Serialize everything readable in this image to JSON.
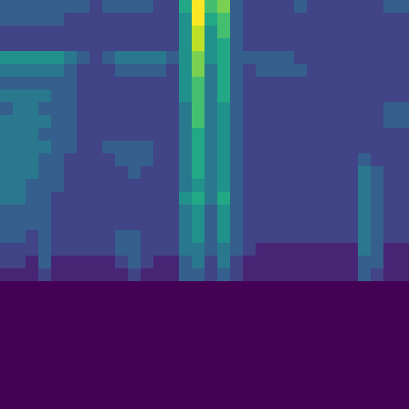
{
  "chart_data": {
    "type": "heatmap",
    "tick_labels": false,
    "zlim": [
      0,
      10
    ],
    "cells": [
      [
        3,
        3,
        3,
        3,
        3,
        3,
        3,
        2,
        3,
        3,
        3,
        3,
        2,
        2,
        6,
        10,
        7,
        8,
        3,
        2,
        2,
        2,
        2,
        3,
        2,
        2,
        2,
        2,
        2,
        2,
        3,
        3
      ],
      [
        3,
        3,
        3,
        3,
        3,
        2,
        2,
        2,
        2,
        2,
        2,
        2,
        2,
        2,
        5,
        10,
        6,
        7,
        3,
        2,
        2,
        2,
        2,
        2,
        2,
        2,
        2,
        2,
        2,
        2,
        2,
        2
      ],
      [
        2,
        2,
        2,
        2,
        2,
        2,
        2,
        2,
        2,
        2,
        2,
        2,
        2,
        2,
        5,
        9,
        5,
        7,
        3,
        2,
        2,
        2,
        2,
        2,
        2,
        2,
        2,
        2,
        2,
        2,
        2,
        2
      ],
      [
        2,
        2,
        2,
        2,
        2,
        2,
        2,
        2,
        2,
        2,
        2,
        2,
        2,
        2,
        5,
        9,
        5,
        6,
        3,
        2,
        2,
        2,
        2,
        2,
        2,
        2,
        2,
        2,
        2,
        2,
        2,
        2
      ],
      [
        5,
        5,
        5,
        5,
        5,
        4,
        3,
        2,
        3,
        4,
        4,
        4,
        4,
        3,
        5,
        8,
        5,
        6,
        3,
        3,
        3,
        3,
        3,
        2,
        2,
        2,
        2,
        2,
        2,
        2,
        2,
        2
      ],
      [
        4,
        4,
        4,
        4,
        4,
        3,
        2,
        2,
        2,
        3,
        3,
        3,
        3,
        2,
        5,
        8,
        4,
        6,
        3,
        2,
        3,
        3,
        3,
        3,
        2,
        2,
        2,
        2,
        2,
        2,
        2,
        2
      ],
      [
        3,
        3,
        3,
        3,
        3,
        3,
        2,
        2,
        2,
        2,
        2,
        2,
        2,
        2,
        5,
        7,
        4,
        6,
        3,
        2,
        2,
        2,
        2,
        2,
        2,
        2,
        2,
        2,
        2,
        2,
        2,
        2
      ],
      [
        4,
        4,
        4,
        4,
        3,
        3,
        2,
        2,
        2,
        2,
        2,
        2,
        2,
        2,
        5,
        7,
        4,
        6,
        3,
        2,
        2,
        2,
        2,
        2,
        2,
        2,
        2,
        2,
        2,
        2,
        2,
        2
      ],
      [
        3,
        4,
        4,
        3,
        3,
        3,
        2,
        2,
        2,
        2,
        2,
        2,
        2,
        2,
        4,
        7,
        4,
        5,
        3,
        2,
        2,
        2,
        2,
        2,
        2,
        2,
        2,
        2,
        2,
        2,
        3,
        3
      ],
      [
        4,
        4,
        4,
        4,
        3,
        3,
        2,
        2,
        2,
        2,
        2,
        2,
        2,
        2,
        4,
        7,
        4,
        5,
        3,
        2,
        2,
        2,
        2,
        2,
        2,
        2,
        2,
        2,
        2,
        2,
        3,
        3
      ],
      [
        4,
        4,
        4,
        3,
        3,
        3,
        2,
        2,
        2,
        2,
        2,
        2,
        2,
        2,
        4,
        6,
        4,
        5,
        3,
        2,
        2,
        2,
        2,
        2,
        2,
        2,
        2,
        2,
        2,
        2,
        2,
        2
      ],
      [
        4,
        4,
        4,
        4,
        3,
        3,
        2,
        2,
        3,
        3,
        3,
        3,
        2,
        2,
        4,
        6,
        4,
        5,
        3,
        2,
        2,
        2,
        2,
        2,
        2,
        2,
        2,
        2,
        2,
        2,
        2,
        2
      ],
      [
        4,
        4,
        4,
        3,
        3,
        2,
        2,
        2,
        2,
        3,
        3,
        3,
        2,
        2,
        4,
        6,
        4,
        5,
        3,
        2,
        2,
        2,
        2,
        2,
        2,
        2,
        2,
        2,
        3,
        2,
        2,
        2
      ],
      [
        4,
        4,
        4,
        3,
        3,
        2,
        2,
        2,
        2,
        2,
        3,
        2,
        2,
        2,
        4,
        6,
        4,
        5,
        3,
        2,
        2,
        2,
        2,
        2,
        2,
        2,
        2,
        2,
        4,
        3,
        2,
        2
      ],
      [
        4,
        4,
        3,
        3,
        3,
        2,
        2,
        2,
        2,
        2,
        2,
        2,
        2,
        2,
        4,
        5,
        4,
        5,
        3,
        2,
        2,
        2,
        2,
        2,
        2,
        2,
        2,
        2,
        4,
        3,
        2,
        2
      ],
      [
        4,
        4,
        3,
        3,
        2,
        2,
        2,
        2,
        2,
        2,
        2,
        2,
        2,
        2,
        5,
        6,
        4,
        6,
        3,
        2,
        2,
        2,
        2,
        2,
        2,
        2,
        2,
        2,
        4,
        3,
        2,
        2
      ],
      [
        3,
        3,
        3,
        3,
        2,
        2,
        2,
        2,
        2,
        2,
        2,
        2,
        2,
        2,
        4,
        5,
        3,
        5,
        3,
        2,
        2,
        2,
        2,
        2,
        2,
        2,
        2,
        2,
        4,
        3,
        2,
        2
      ],
      [
        3,
        3,
        3,
        3,
        2,
        2,
        2,
        2,
        2,
        2,
        2,
        2,
        2,
        2,
        4,
        5,
        3,
        5,
        3,
        2,
        2,
        2,
        2,
        2,
        2,
        2,
        2,
        2,
        4,
        3,
        2,
        2
      ],
      [
        3,
        3,
        2,
        3,
        2,
        2,
        2,
        2,
        2,
        3,
        3,
        2,
        2,
        2,
        4,
        5,
        3,
        5,
        3,
        2,
        2,
        2,
        2,
        2,
        2,
        2,
        2,
        2,
        4,
        3,
        2,
        2
      ],
      [
        2,
        2,
        2,
        3,
        2,
        2,
        2,
        2,
        2,
        3,
        3,
        2,
        2,
        2,
        4,
        4,
        3,
        4,
        3,
        2,
        1,
        1,
        1,
        1,
        1,
        1,
        1,
        1,
        4,
        3,
        1,
        1
      ],
      [
        2,
        2,
        1,
        3,
        1,
        1,
        1,
        1,
        1,
        2,
        3,
        2,
        1,
        1,
        3,
        4,
        2,
        4,
        2,
        1,
        1,
        1,
        1,
        1,
        1,
        1,
        1,
        1,
        3,
        3,
        1,
        1
      ],
      [
        1,
        1,
        1,
        2,
        1,
        1,
        1,
        1,
        1,
        1,
        2,
        1,
        1,
        1,
        3,
        3,
        2,
        3,
        2,
        1,
        1,
        1,
        1,
        1,
        1,
        1,
        1,
        1,
        3,
        2,
        1,
        1
      ],
      [
        0,
        0,
        0,
        0,
        0,
        0,
        0,
        0,
        0,
        0,
        0,
        0,
        0,
        0,
        0,
        0,
        0,
        0,
        0,
        0,
        0,
        0,
        0,
        0,
        0,
        0,
        0,
        0,
        0,
        0,
        0,
        0
      ],
      [
        0,
        0,
        0,
        0,
        0,
        0,
        0,
        0,
        0,
        0,
        0,
        0,
        0,
        0,
        0,
        0,
        0,
        0,
        0,
        0,
        0,
        0,
        0,
        0,
        0,
        0,
        0,
        0,
        0,
        0,
        0,
        0
      ],
      [
        0,
        0,
        0,
        0,
        0,
        0,
        0,
        0,
        0,
        0,
        0,
        0,
        0,
        0,
        0,
        0,
        0,
        0,
        0,
        0,
        0,
        0,
        0,
        0,
        0,
        0,
        0,
        0,
        0,
        0,
        0,
        0
      ],
      [
        0,
        0,
        0,
        0,
        0,
        0,
        0,
        0,
        0,
        0,
        0,
        0,
        0,
        0,
        0,
        0,
        0,
        0,
        0,
        0,
        0,
        0,
        0,
        0,
        0,
        0,
        0,
        0,
        0,
        0,
        0,
        0
      ],
      [
        0,
        0,
        0,
        0,
        0,
        0,
        0,
        0,
        0,
        0,
        0,
        0,
        0,
        0,
        0,
        0,
        0,
        0,
        0,
        0,
        0,
        0,
        0,
        0,
        0,
        0,
        0,
        0,
        0,
        0,
        0,
        0
      ],
      [
        0,
        0,
        0,
        0,
        0,
        0,
        0,
        0,
        0,
        0,
        0,
        0,
        0,
        0,
        0,
        0,
        0,
        0,
        0,
        0,
        0,
        0,
        0,
        0,
        0,
        0,
        0,
        0,
        0,
        0,
        0,
        0
      ],
      [
        0,
        0,
        0,
        0,
        0,
        0,
        0,
        0,
        0,
        0,
        0,
        0,
        0,
        0,
        0,
        0,
        0,
        0,
        0,
        0,
        0,
        0,
        0,
        0,
        0,
        0,
        0,
        0,
        0,
        0,
        0,
        0
      ],
      [
        0,
        0,
        0,
        0,
        0,
        0,
        0,
        0,
        0,
        0,
        0,
        0,
        0,
        0,
        0,
        0,
        0,
        0,
        0,
        0,
        0,
        0,
        0,
        0,
        0,
        0,
        0,
        0,
        0,
        0,
        0,
        0
      ],
      [
        0,
        0,
        0,
        0,
        0,
        0,
        0,
        0,
        0,
        0,
        0,
        0,
        0,
        0,
        0,
        0,
        0,
        0,
        0,
        0,
        0,
        0,
        0,
        0,
        0,
        0,
        0,
        0,
        0,
        0,
        0,
        0
      ],
      [
        0,
        0,
        0,
        0,
        0,
        0,
        0,
        0,
        0,
        0,
        0,
        0,
        0,
        0,
        0,
        0,
        0,
        0,
        0,
        0,
        0,
        0,
        0,
        0,
        0,
        0,
        0,
        0,
        0,
        0,
        0,
        0
      ]
    ]
  }
}
